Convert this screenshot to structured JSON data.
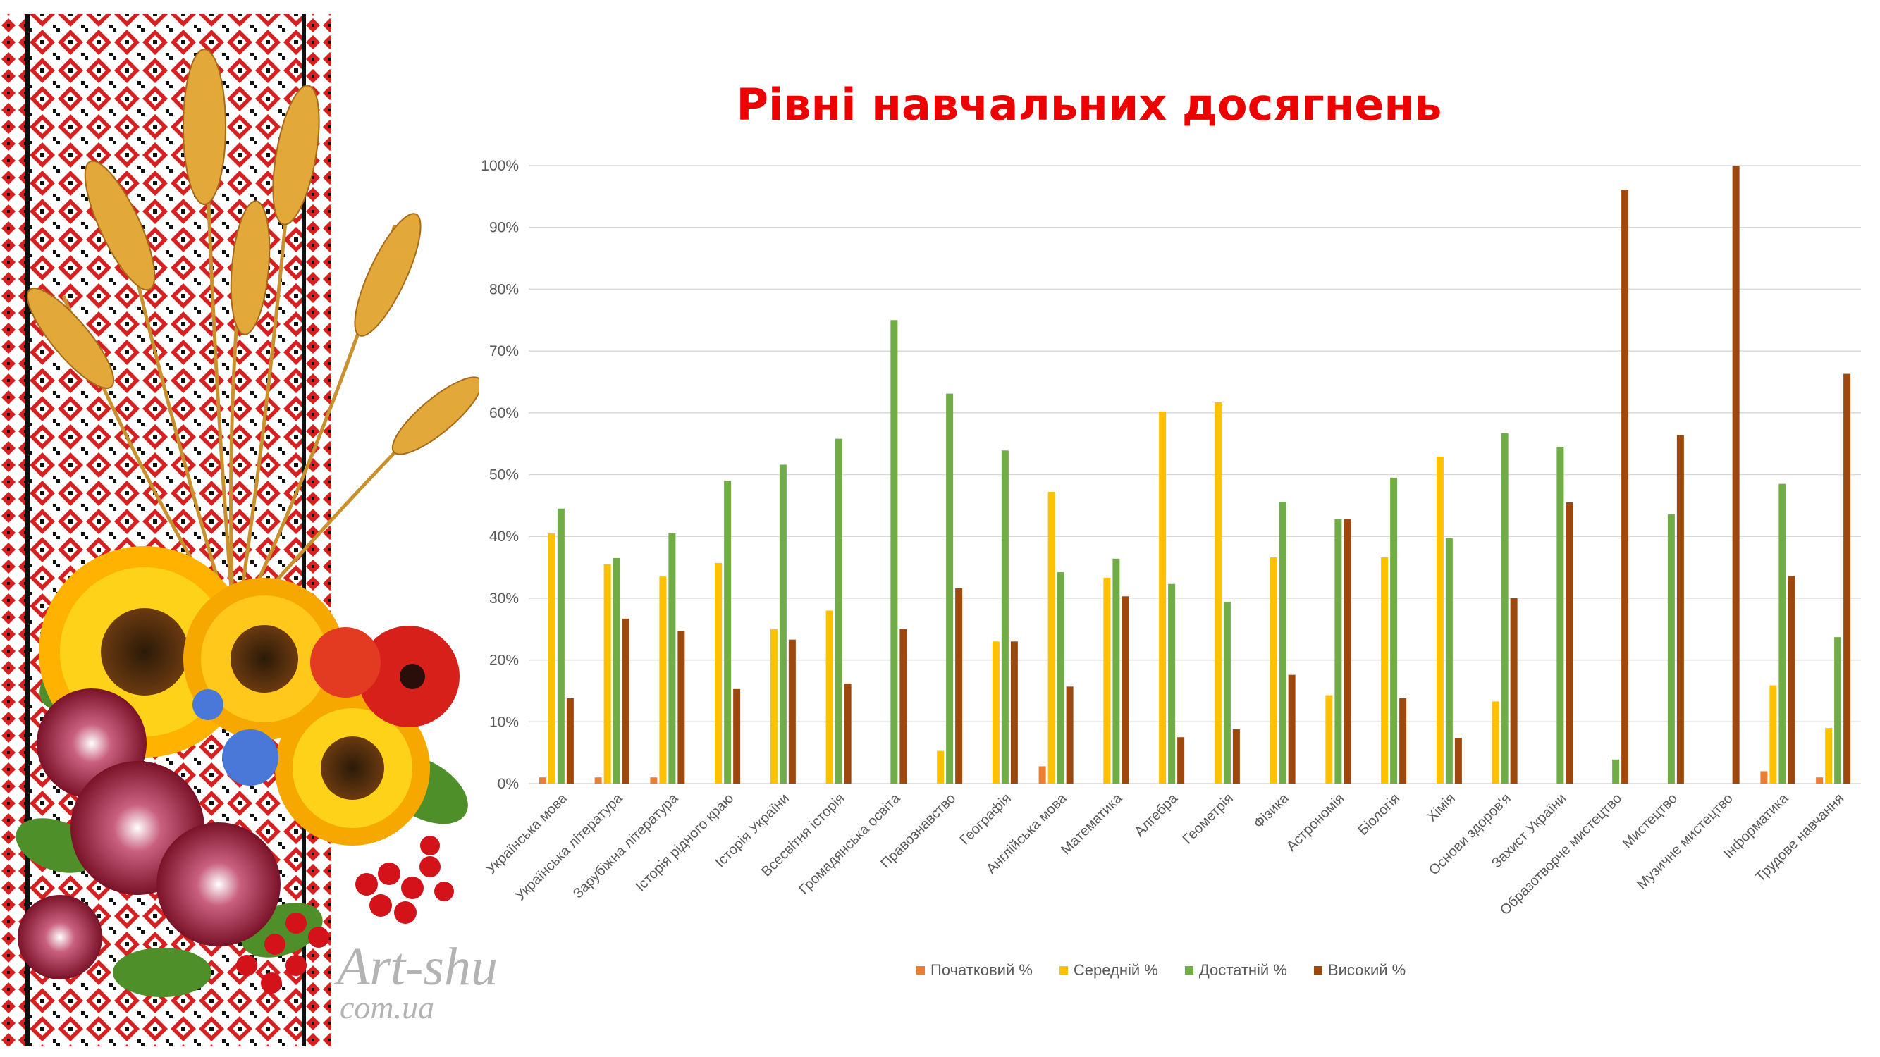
{
  "watermark": {
    "line1": "Art-shu",
    "line2": "com.ua"
  },
  "chart_data": {
    "type": "bar",
    "title": "Рівні навчальних досягнень",
    "xlabel": "",
    "ylabel": "",
    "ylim": [
      0,
      100
    ],
    "yticks": [
      "0%",
      "10%",
      "20%",
      "30%",
      "40%",
      "50%",
      "60%",
      "70%",
      "80%",
      "90%",
      "100%"
    ],
    "grid": true,
    "legend_position": "bottom",
    "categories": [
      "Українська мова",
      "Українська література",
      "Зарубіжна література",
      "Історія рідного краю",
      "Історія України",
      "Всесвітня історія",
      "Громадянська освіта",
      "Правознавство",
      "Географія",
      "Англійська мова",
      "Математика",
      "Алгебра",
      "Геометрія",
      "Фізика",
      "Астрономія",
      "Біологія",
      "Хімія",
      "Основи здоров'я",
      "Захист України",
      "Образотворче мистецтво",
      "Мистецтво",
      "Музичне мистецтво",
      "Інформатика",
      "Трудове навчання"
    ],
    "series": [
      {
        "name": "Початковий %",
        "color": "#ed7d31",
        "values": [
          1,
          1,
          1,
          0,
          0,
          0,
          0,
          0,
          0,
          2.8,
          0,
          0,
          0,
          0,
          0,
          0,
          0,
          0,
          0,
          0,
          0,
          0,
          2,
          1
        ]
      },
      {
        "name": "Середній %",
        "color": "#ffc000",
        "values": [
          40.5,
          35.5,
          33.5,
          35.7,
          25,
          28,
          0,
          5.3,
          23,
          47.2,
          33.3,
          60.2,
          61.7,
          36.6,
          14.3,
          36.6,
          52.9,
          13.3,
          0,
          0,
          0,
          0,
          15.9,
          9
        ]
      },
      {
        "name": "Достатній %",
        "color": "#70ad47",
        "values": [
          44.5,
          36.5,
          40.5,
          49,
          51.6,
          55.8,
          75,
          63.1,
          53.9,
          34.2,
          36.4,
          32.3,
          29.4,
          45.6,
          42.8,
          49.5,
          39.7,
          56.7,
          54.5,
          3.9,
          43.6,
          0,
          48.5,
          23.7
        ]
      },
      {
        "name": "Високий %",
        "color": "#9e480e",
        "values": [
          13.8,
          26.7,
          24.7,
          15.3,
          23.3,
          16.2,
          25,
          31.6,
          23,
          15.7,
          30.3,
          7.5,
          8.8,
          17.6,
          42.8,
          13.8,
          7.4,
          30,
          45.5,
          96.1,
          56.4,
          100,
          33.6,
          66.3
        ]
      }
    ]
  }
}
